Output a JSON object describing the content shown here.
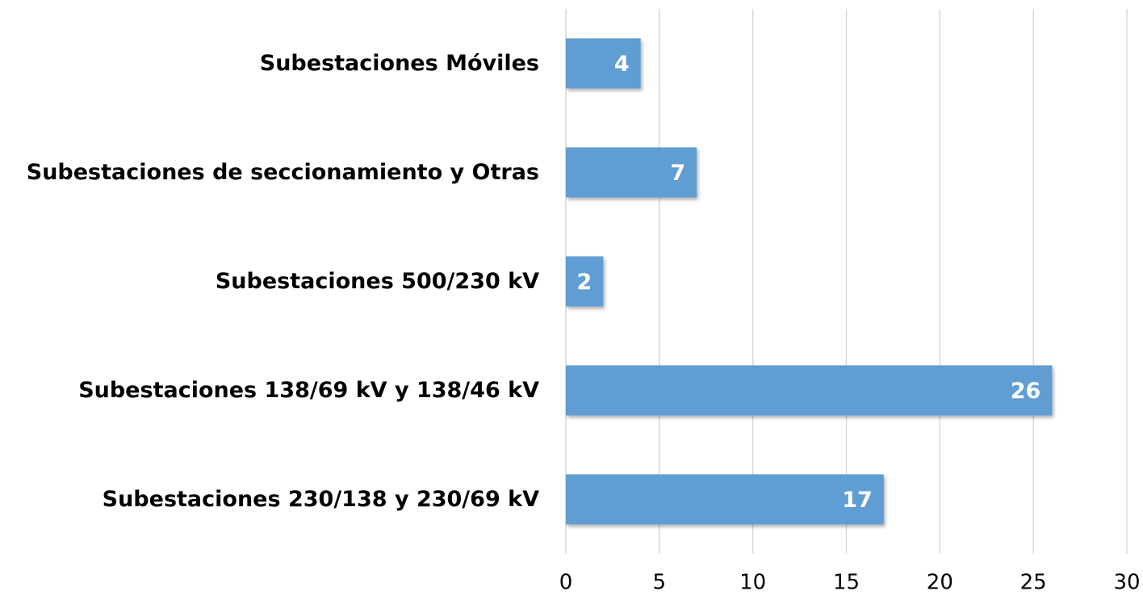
{
  "chart_data": {
    "type": "barh",
    "categories": [
      "Subestaciones Móviles",
      "Subestaciones de seccionamiento y Otras",
      "Subestaciones 500/230 kV",
      "Subestaciones 138/69 kV y 138/46 kV",
      "Subestaciones 230/138 y 230/69 kV"
    ],
    "values": [
      4,
      7,
      2,
      26,
      17
    ],
    "color": "#5f9dd3",
    "xlim": [
      0,
      30
    ],
    "xticks": [
      0,
      5,
      10,
      15,
      20,
      25,
      30
    ],
    "grid": true
  }
}
